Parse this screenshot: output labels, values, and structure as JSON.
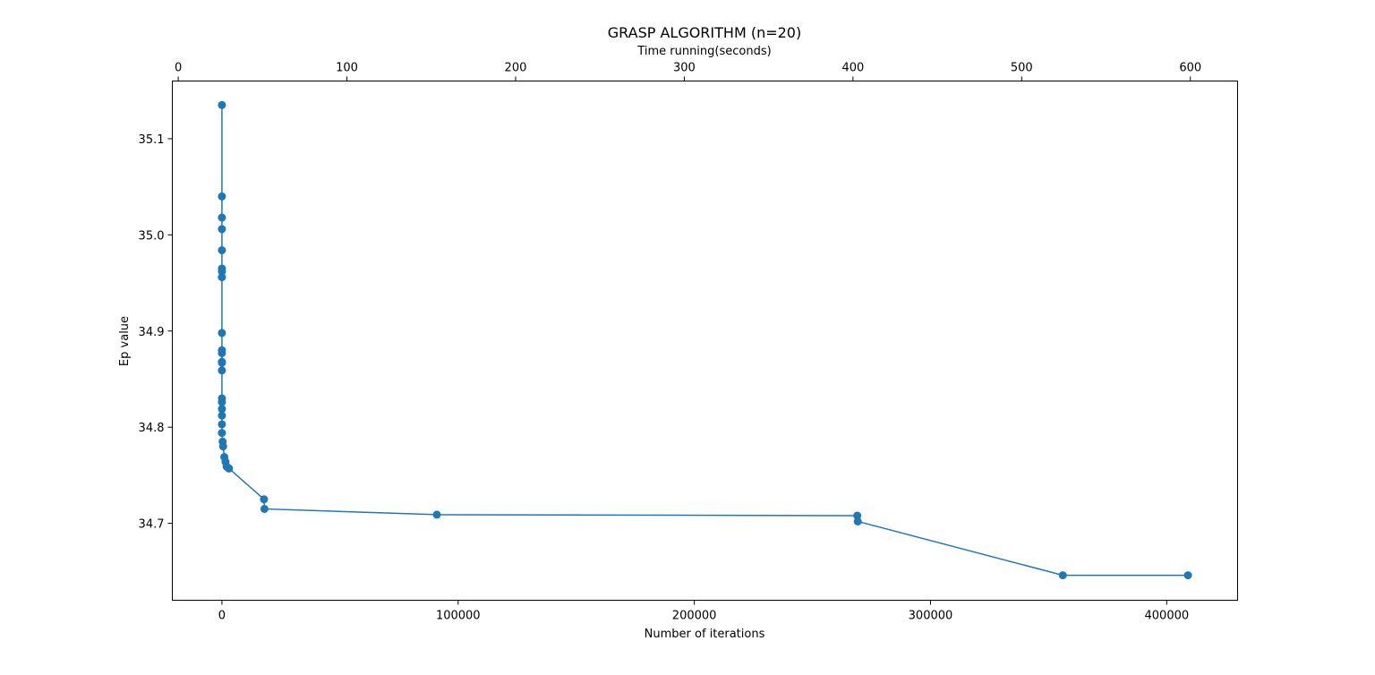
{
  "chart_data": {
    "type": "line",
    "title": "GRASP ALGORITHM (n=20)",
    "xlabel": "Number of iterations",
    "ylabel": "Ep value",
    "x2label": "Time running(seconds)",
    "xlim": [
      -21000,
      430000
    ],
    "ylim": [
      34.62,
      35.16
    ],
    "x2lim": [
      -3.5,
      628
    ],
    "xticks": [
      0,
      100000,
      200000,
      300000,
      400000
    ],
    "yticks": [
      34.7,
      34.8,
      34.9,
      35.0,
      35.1
    ],
    "x2ticks": [
      0,
      100,
      200,
      300,
      400,
      500,
      600
    ],
    "xtick_labels": [
      "0",
      "100000",
      "200000",
      "300000",
      "400000"
    ],
    "ytick_labels": [
      "34.7",
      "34.8",
      "34.9",
      "35.0",
      "35.1"
    ],
    "x2tick_labels": [
      "0",
      "100",
      "200",
      "300",
      "400",
      "500",
      "600"
    ],
    "grid": false,
    "line_color": "#1f77b4",
    "series": [
      {
        "x": [
          0,
          0,
          0,
          0,
          0,
          0,
          0,
          0,
          0,
          0,
          0,
          0,
          0,
          0,
          0,
          0,
          0,
          0,
          0,
          0,
          300,
          500,
          1000,
          1500,
          2000,
          2500,
          3000,
          17800,
          18000,
          91000,
          269000,
          269200,
          356000,
          409000
        ],
        "y": [
          35.135,
          35.04,
          35.018,
          35.006,
          34.984,
          34.965,
          34.962,
          34.956,
          34.898,
          34.88,
          34.877,
          34.868,
          34.867,
          34.859,
          34.83,
          34.826,
          34.819,
          34.812,
          34.803,
          34.794,
          34.785,
          34.78,
          34.769,
          34.764,
          34.759,
          34.758,
          34.757,
          34.725,
          34.715,
          34.709,
          34.708,
          34.702,
          34.646,
          34.646
        ]
      }
    ]
  }
}
